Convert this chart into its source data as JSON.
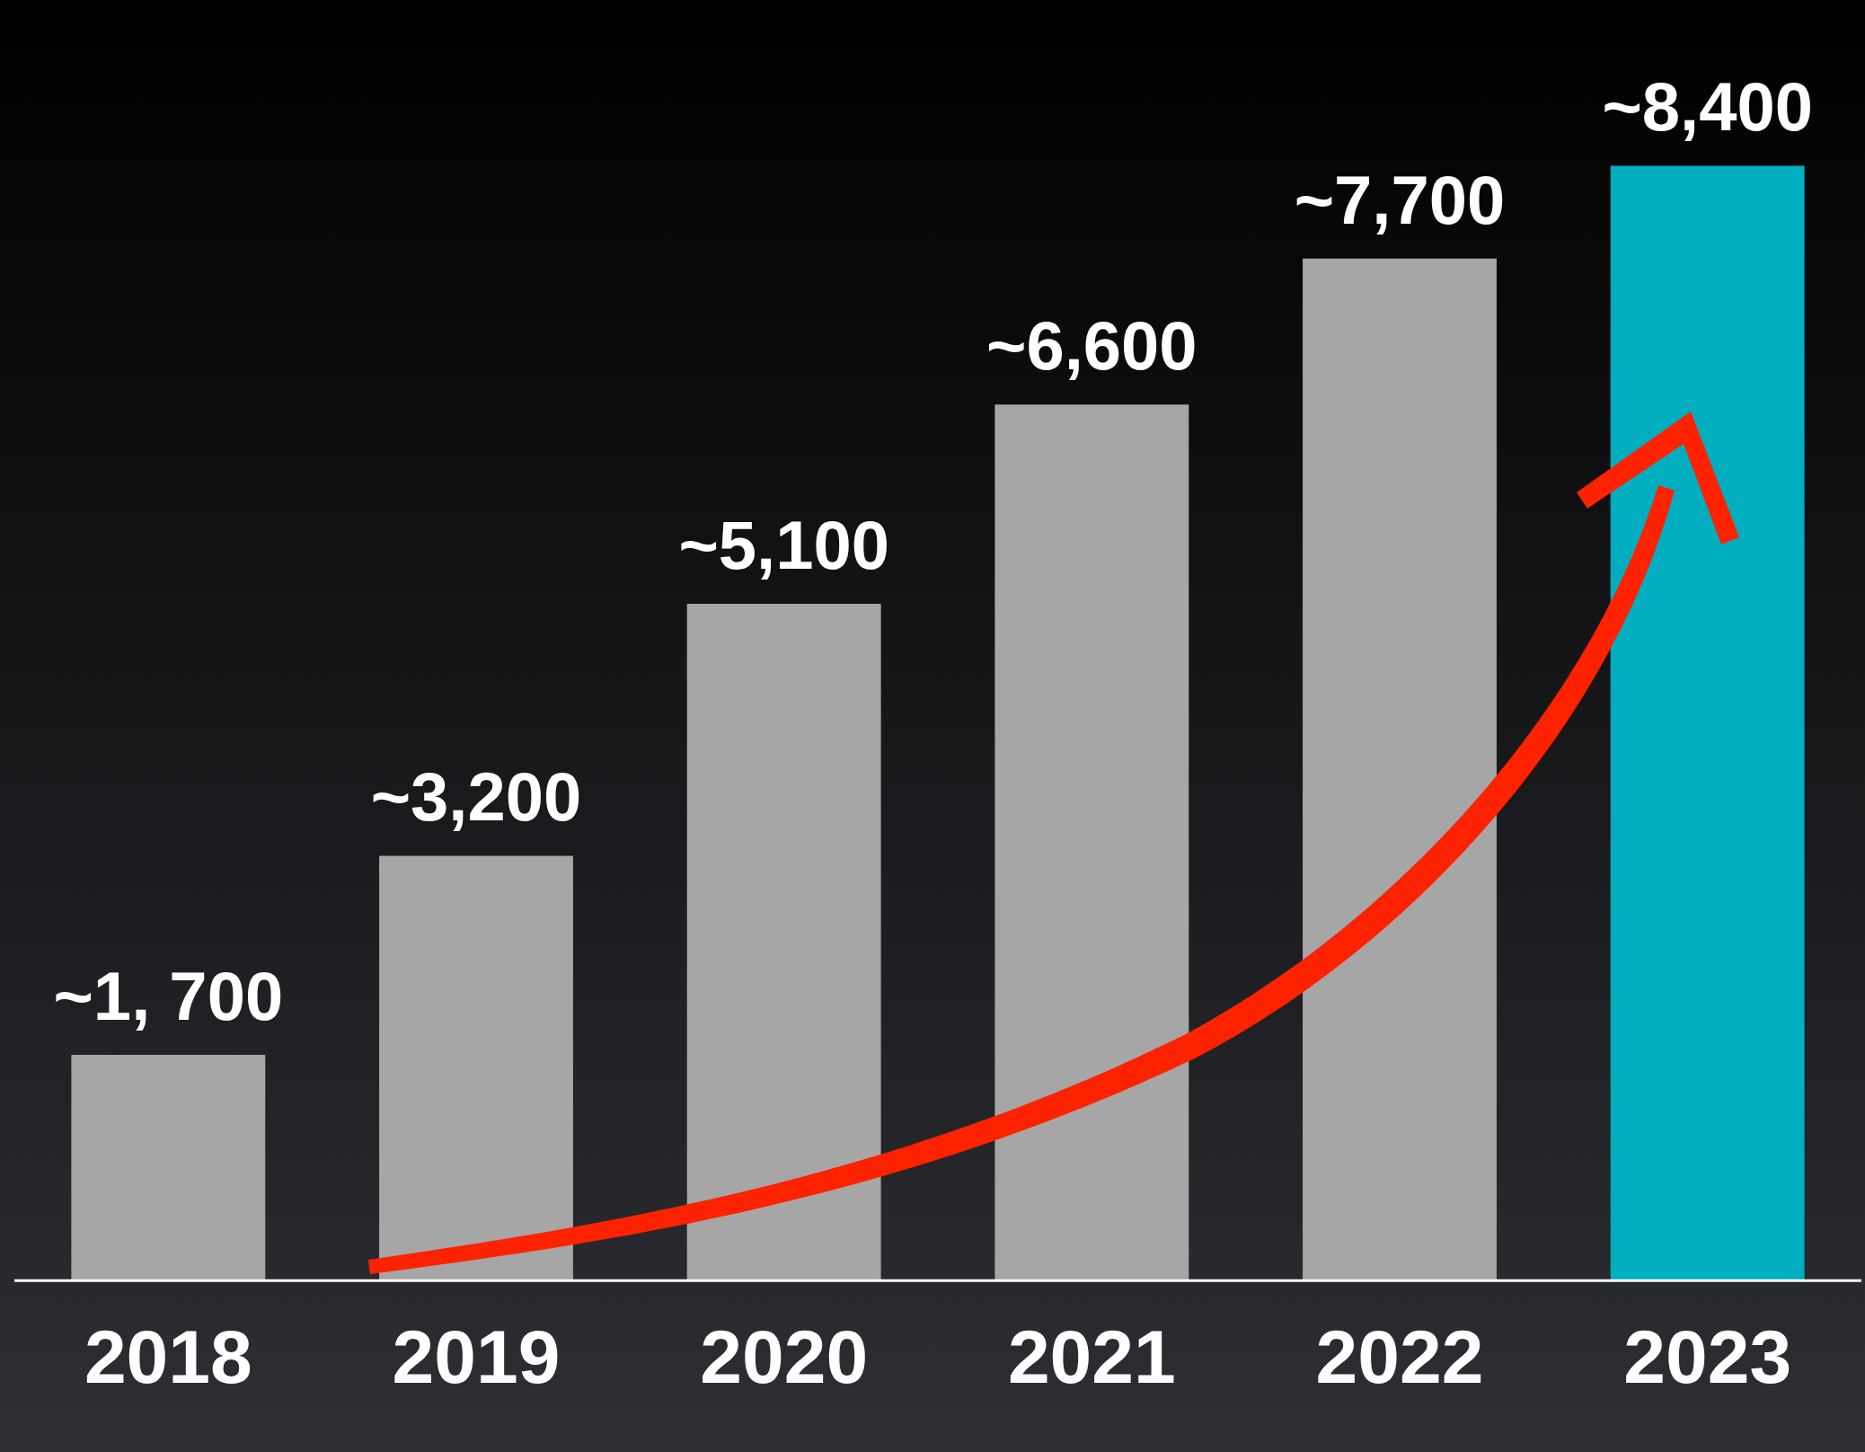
{
  "chart_data": {
    "type": "bar",
    "categories": [
      "2018",
      "2019",
      "2020",
      "2021",
      "2022",
      "2023"
    ],
    "values": [
      1700,
      3200,
      5100,
      6600,
      7700,
      8400
    ],
    "value_labels": [
      "~1, 700",
      "~3,200",
      "~5,100",
      "~6,600",
      "~7,700",
      "~8,400"
    ],
    "colors": [
      "#a6a6a6",
      "#a6a6a6",
      "#a6a6a6",
      "#a6a6a6",
      "#a6a6a6",
      "#00aebf"
    ],
    "legend": false
  }
}
